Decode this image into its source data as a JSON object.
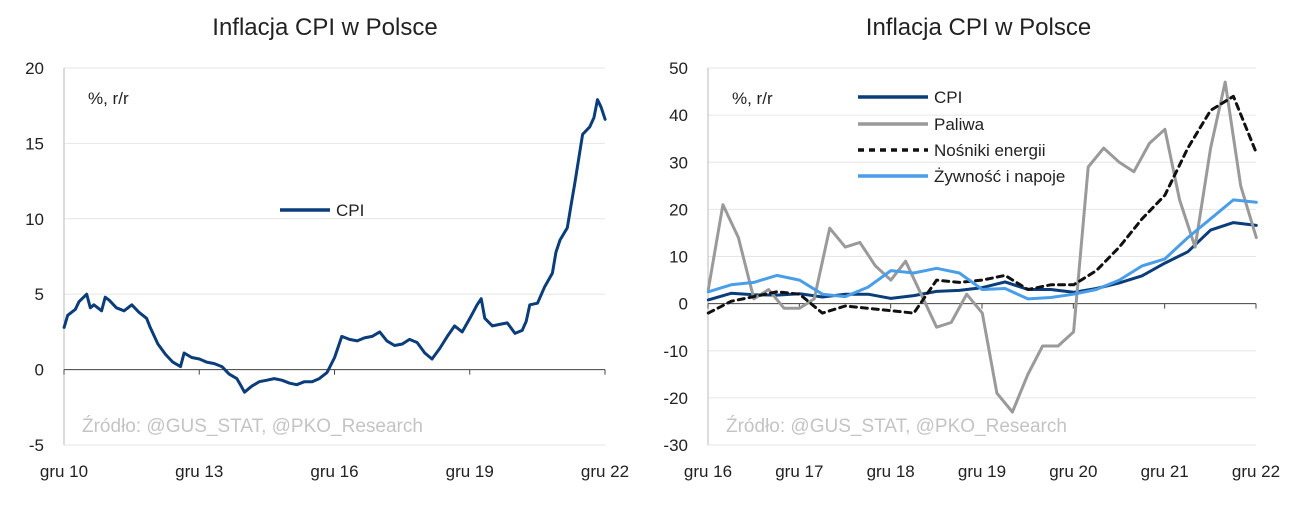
{
  "charts": [
    {
      "title": "Inflacja CPI w Polsce",
      "unit_label": "%, r/r",
      "source": "Źródło: @GUS_STAT, @PKO_Research",
      "legend_label": "CPI"
    },
    {
      "title": "Inflacja CPI w Polsce",
      "unit_label": "%, r/r",
      "source": "Źródło: @GUS_STAT, @PKO_Research",
      "legend": [
        "CPI",
        "Paliwa",
        "Nośniki energii",
        "Żywność i napoje"
      ]
    }
  ],
  "chart_data": [
    {
      "type": "line",
      "title": "Inflacja CPI w Polsce",
      "xlabel": "",
      "ylabel": "%, r/r",
      "x_range": [
        2010.917,
        2022.917
      ],
      "ylim": [
        -5,
        20
      ],
      "yticks": [
        -5,
        0,
        5,
        10,
        15,
        20
      ],
      "xtick_labels": [
        "gru 10",
        "gru 13",
        "gru 16",
        "gru 19",
        "gru 22"
      ],
      "xtick_positions": [
        2010.917,
        2013.917,
        2016.917,
        2019.917,
        2022.917
      ],
      "grid": true,
      "legend_position": "center",
      "series": [
        {
          "name": "CPI",
          "color": "#0a3d7a",
          "x": [
            2010.92,
            2011.0,
            2011.17,
            2011.25,
            2011.42,
            2011.5,
            2011.58,
            2011.75,
            2011.83,
            2011.92,
            2012.08,
            2012.25,
            2012.42,
            2012.58,
            2012.75,
            2012.83,
            2013.0,
            2013.17,
            2013.33,
            2013.5,
            2013.58,
            2013.75,
            2013.92,
            2014.08,
            2014.25,
            2014.42,
            2014.58,
            2014.75,
            2014.83,
            2014.92,
            2015.08,
            2015.25,
            2015.42,
            2015.58,
            2015.75,
            2015.92,
            2016.08,
            2016.25,
            2016.42,
            2016.58,
            2016.75,
            2016.92,
            2017.08,
            2017.25,
            2017.42,
            2017.58,
            2017.75,
            2017.92,
            2018.08,
            2018.25,
            2018.42,
            2018.58,
            2018.75,
            2018.92,
            2019.08,
            2019.25,
            2019.42,
            2019.58,
            2019.75,
            2019.92,
            2020.08,
            2020.17,
            2020.25,
            2020.42,
            2020.58,
            2020.75,
            2020.92,
            2021.08,
            2021.17,
            2021.25,
            2021.42,
            2021.58,
            2021.75,
            2021.83,
            2021.92,
            2022.08,
            2022.17,
            2022.25,
            2022.42,
            2022.58,
            2022.67,
            2022.75,
            2022.83,
            2022.92
          ],
          "values": [
            2.8,
            3.6,
            4.0,
            4.5,
            5.0,
            4.1,
            4.3,
            3.9,
            4.8,
            4.6,
            4.1,
            3.9,
            4.3,
            3.8,
            3.4,
            2.8,
            1.7,
            1.0,
            0.5,
            0.2,
            1.1,
            0.8,
            0.7,
            0.5,
            0.4,
            0.2,
            -0.3,
            -0.6,
            -1.0,
            -1.5,
            -1.1,
            -0.8,
            -0.7,
            -0.6,
            -0.7,
            -0.9,
            -1.0,
            -0.8,
            -0.8,
            -0.6,
            -0.2,
            0.8,
            2.2,
            2.0,
            1.9,
            2.1,
            2.2,
            2.5,
            1.9,
            1.6,
            1.7,
            2.0,
            1.8,
            1.1,
            0.7,
            1.4,
            2.2,
            2.9,
            2.5,
            3.4,
            4.3,
            4.7,
            3.4,
            2.9,
            3.0,
            3.1,
            2.4,
            2.6,
            3.2,
            4.3,
            4.4,
            5.5,
            6.4,
            7.8,
            8.6,
            9.4,
            11.0,
            12.4,
            15.6,
            16.1,
            16.7,
            17.9,
            17.4,
            16.6
          ]
        }
      ]
    },
    {
      "type": "line",
      "title": "Inflacja CPI w Polsce",
      "xlabel": "",
      "ylabel": "%, r/r",
      "x_range": [
        2016.917,
        2022.917
      ],
      "ylim": [
        -30,
        50
      ],
      "yticks": [
        -30,
        -20,
        -10,
        0,
        10,
        20,
        30,
        40,
        50
      ],
      "xtick_labels": [
        "gru 16",
        "gru 17",
        "gru 18",
        "gru 19",
        "gru 20",
        "gru 21",
        "gru 22"
      ],
      "xtick_positions": [
        2016.917,
        2017.917,
        2018.917,
        2019.917,
        2020.917,
        2021.917,
        2022.917
      ],
      "grid": true,
      "legend_position": "top-left",
      "series": [
        {
          "name": "CPI",
          "color": "#0a3d7a",
          "style": "solid",
          "x": [
            2016.92,
            2017.17,
            2017.42,
            2017.67,
            2017.92,
            2018.17,
            2018.42,
            2018.67,
            2018.92,
            2019.17,
            2019.42,
            2019.67,
            2019.92,
            2020.17,
            2020.42,
            2020.67,
            2020.92,
            2021.17,
            2021.42,
            2021.67,
            2021.92,
            2022.17,
            2022.42,
            2022.67,
            2022.92
          ],
          "values": [
            0.8,
            2.2,
            1.9,
            1.8,
            2.1,
            1.4,
            2.0,
            2.0,
            1.1,
            1.7,
            2.6,
            2.8,
            3.4,
            4.6,
            3.0,
            3.0,
            2.4,
            3.2,
            4.4,
            5.9,
            8.6,
            11.0,
            15.6,
            17.2,
            16.6
          ]
        },
        {
          "name": "Paliwa",
          "color": "#9a9a9a",
          "style": "solid",
          "x": [
            2016.92,
            2017.08,
            2017.25,
            2017.42,
            2017.58,
            2017.75,
            2017.92,
            2018.08,
            2018.25,
            2018.42,
            2018.58,
            2018.75,
            2018.92,
            2019.08,
            2019.25,
            2019.42,
            2019.58,
            2019.75,
            2019.92,
            2020.08,
            2020.25,
            2020.42,
            2020.58,
            2020.75,
            2020.92,
            2021.08,
            2021.25,
            2021.42,
            2021.58,
            2021.75,
            2021.92,
            2022.08,
            2022.25,
            2022.42,
            2022.58,
            2022.75,
            2022.92
          ],
          "values": [
            3,
            21,
            14,
            1,
            3,
            -1,
            -1,
            1,
            16,
            12,
            13,
            8,
            5,
            9,
            2,
            -5,
            -4,
            2,
            -2,
            -19,
            -23,
            -15,
            -9,
            -9,
            -6,
            29,
            33,
            30,
            28,
            34,
            37,
            22,
            12,
            33,
            47,
            25,
            14
          ]
        },
        {
          "name": "Nośniki energii",
          "color": "#111111",
          "style": "dashed",
          "x": [
            2016.92,
            2017.17,
            2017.42,
            2017.67,
            2017.92,
            2018.17,
            2018.42,
            2018.67,
            2018.92,
            2019.17,
            2019.42,
            2019.67,
            2019.92,
            2020.17,
            2020.42,
            2020.67,
            2020.92,
            2021.17,
            2021.42,
            2021.67,
            2021.92,
            2022.17,
            2022.42,
            2022.67,
            2022.92
          ],
          "values": [
            -2,
            0.5,
            1.5,
            2.5,
            2.0,
            -2,
            -0.5,
            -1,
            -1.5,
            -2,
            5,
            4.5,
            5,
            6,
            3,
            4,
            4,
            7,
            12,
            18,
            23,
            33,
            41,
            44,
            32
          ]
        },
        {
          "name": "Żywność i napoje",
          "color": "#4a9ee8",
          "style": "solid",
          "x": [
            2016.92,
            2017.17,
            2017.42,
            2017.67,
            2017.92,
            2018.17,
            2018.42,
            2018.67,
            2018.92,
            2019.17,
            2019.42,
            2019.67,
            2019.92,
            2020.17,
            2020.42,
            2020.67,
            2020.92,
            2021.17,
            2021.42,
            2021.67,
            2021.92,
            2022.17,
            2022.42,
            2022.67,
            2022.92
          ],
          "values": [
            2.5,
            4.0,
            4.5,
            6.0,
            5.0,
            2.0,
            1.5,
            3.5,
            7.0,
            6.5,
            7.5,
            6.5,
            3.0,
            3.2,
            1.0,
            1.3,
            2.0,
            3.0,
            5.0,
            8.0,
            9.5,
            14.0,
            18.0,
            22.0,
            21.5
          ]
        }
      ]
    }
  ]
}
